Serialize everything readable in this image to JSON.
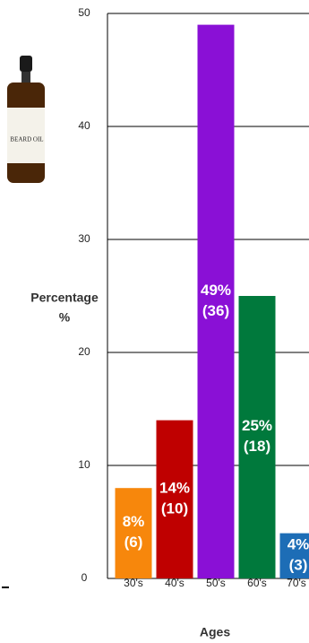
{
  "chart_data": {
    "type": "bar",
    "categories": [
      "30's",
      "40's",
      "50's",
      "60's",
      "70's"
    ],
    "values": [
      8,
      14,
      49,
      25,
      4
    ],
    "value_labels": [
      "8%",
      "14%",
      "49%",
      "25%",
      "4%"
    ],
    "count_labels": [
      "(6)",
      "(10)",
      "(36)",
      "(18)",
      "(3)"
    ],
    "colors": [
      "#f7870c",
      "#bf0000",
      "#8a10d6",
      "#00793c",
      "#1d6db6"
    ],
    "ylim": [
      0,
      50
    ],
    "yticks": [
      0,
      10,
      20,
      30,
      40,
      50
    ],
    "grid": true,
    "ylabel": [
      "Percentage",
      "%"
    ],
    "xlabel": "Ages",
    "product_label": "BEARD OIL"
  }
}
